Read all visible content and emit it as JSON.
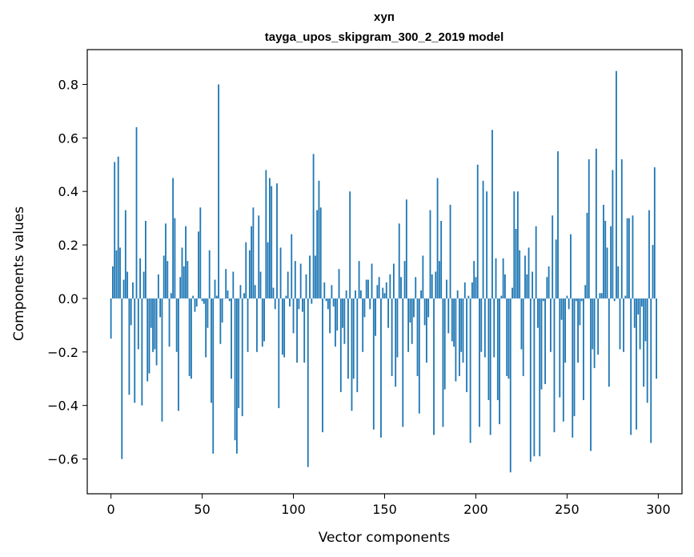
{
  "chart_data": {
    "type": "bar",
    "title": "хуп",
    "subtitle": "tayga_upos_skipgram_300_2_2019 model",
    "xlabel": "Vector components",
    "ylabel": "Components values",
    "xlim": [
      -13,
      313
    ],
    "ylim": [
      -0.73,
      0.93
    ],
    "xticks": [
      0,
      50,
      100,
      150,
      200,
      250,
      300
    ],
    "yticks": [
      -0.6,
      -0.4,
      -0.2,
      0.0,
      0.2,
      0.4,
      0.6,
      0.8
    ],
    "xtick_labels": [
      "0",
      "50",
      "100",
      "150",
      "200",
      "250",
      "300"
    ],
    "ytick_labels": [
      "−0.6",
      "−0.4",
      "−0.2",
      "0.0",
      "0.2",
      "0.4",
      "0.6",
      "0.8"
    ],
    "grid": false,
    "bar_color": "#1f77b4",
    "values": [
      -0.15,
      0.12,
      0.51,
      0.18,
      0.53,
      0.19,
      -0.6,
      0.07,
      0.33,
      0.1,
      -0.36,
      -0.1,
      0.06,
      -0.39,
      0.64,
      -0.19,
      0.15,
      -0.4,
      0.1,
      0.29,
      -0.31,
      -0.28,
      -0.11,
      -0.2,
      -0.19,
      -0.25,
      0.09,
      -0.07,
      -0.46,
      0.16,
      0.28,
      0.14,
      -0.18,
      0.02,
      0.45,
      0.3,
      -0.2,
      -0.42,
      0.08,
      0.19,
      0.12,
      0.27,
      0.14,
      -0.29,
      -0.3,
      0.01,
      -0.05,
      -0.03,
      0.25,
      0.34,
      -0.01,
      -0.02,
      -0.22,
      -0.11,
      0.18,
      -0.39,
      -0.58,
      0.07,
      0.01,
      0.8,
      -0.17,
      -0.09,
      0.0,
      0.11,
      0.03,
      -0.01,
      -0.3,
      0.1,
      -0.53,
      -0.58,
      -0.41,
      0.05,
      -0.44,
      0.02,
      0.21,
      -0.2,
      0.18,
      0.27,
      0.34,
      0.05,
      -0.2,
      0.31,
      0.1,
      -0.18,
      -0.16,
      0.48,
      0.21,
      0.45,
      0.42,
      0.04,
      -0.04,
      0.43,
      -0.41,
      0.19,
      -0.21,
      -0.22,
      0.01,
      0.1,
      -0.03,
      0.24,
      -0.13,
      0.14,
      -0.24,
      -0.04,
      0.13,
      -0.05,
      -0.24,
      0.09,
      -0.63,
      0.16,
      -0.02,
      0.54,
      0.16,
      0.33,
      0.44,
      0.34,
      -0.5,
      0.06,
      -0.01,
      -0.04,
      -0.13,
      0.05,
      -0.03,
      -0.18,
      -0.12,
      0.11,
      -0.35,
      -0.11,
      -0.17,
      0.03,
      -0.3,
      0.4,
      -0.42,
      -0.3,
      0.03,
      -0.35,
      0.14,
      0.03,
      -0.2,
      -0.07,
      0.07,
      0.07,
      -0.04,
      0.13,
      -0.49,
      -0.14,
      0.05,
      0.08,
      -0.52,
      0.04,
      0.02,
      0.06,
      -0.11,
      0.09,
      -0.29,
      0.13,
      -0.33,
      -0.22,
      0.28,
      0.08,
      -0.48,
      0.14,
      0.37,
      -0.2,
      -0.09,
      -0.17,
      -0.07,
      0.08,
      -0.29,
      -0.43,
      0.03,
      0.16,
      -0.1,
      -0.24,
      -0.07,
      0.33,
      0.09,
      -0.51,
      0.1,
      0.45,
      0.14,
      0.29,
      -0.48,
      -0.34,
      0.07,
      -0.13,
      0.35,
      -0.16,
      -0.18,
      -0.31,
      0.03,
      -0.29,
      -0.2,
      -0.24,
      0.06,
      -0.35,
      0.01,
      -0.54,
      0.06,
      0.14,
      0.08,
      0.5,
      -0.48,
      -0.2,
      0.44,
      -0.22,
      0.4,
      -0.38,
      -0.51,
      0.63,
      -0.22,
      0.15,
      -0.38,
      -0.47,
      0.01,
      0.15,
      0.09,
      -0.29,
      -0.3,
      -0.65,
      0.04,
      0.4,
      0.26,
      0.4,
      0.18,
      -0.19,
      -0.29,
      0.16,
      0.09,
      0.19,
      -0.61,
      0.1,
      -0.59,
      0.27,
      -0.11,
      -0.59,
      -0.34,
      -0.01,
      -0.32,
      0.08,
      0.12,
      -0.2,
      0.31,
      -0.5,
      0.22,
      0.55,
      -0.37,
      -0.08,
      -0.46,
      -0.24,
      0.01,
      -0.04,
      0.24,
      -0.52,
      -0.44,
      -0.01,
      -0.24,
      -0.1,
      -0.01,
      -0.38,
      0.05,
      0.32,
      0.52,
      -0.57,
      -0.19,
      -0.26,
      0.56,
      -0.21,
      0.02,
      0.02,
      0.35,
      0.29,
      0.19,
      -0.33,
      0.27,
      0.48,
      -0.01,
      0.85,
      0.12,
      -0.19,
      0.52,
      -0.2,
      0.01,
      0.3,
      0.3,
      -0.51,
      0.31,
      -0.11,
      -0.49,
      -0.06,
      -0.19,
      -0.03,
      -0.33,
      -0.16,
      -0.39,
      0.33,
      -0.54,
      0.2,
      0.49,
      -0.3
    ]
  }
}
